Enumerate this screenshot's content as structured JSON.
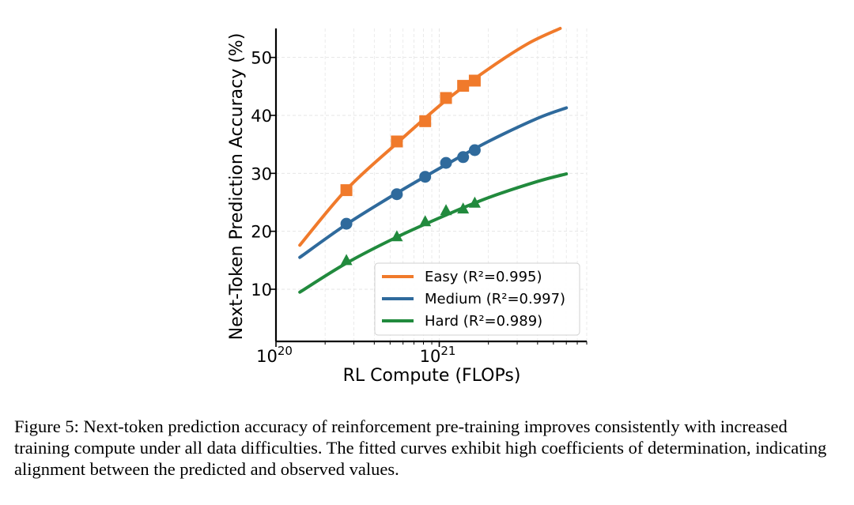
{
  "chart_data": {
    "type": "line",
    "xscale": "log",
    "xlabel": "RL Compute (FLOPs)",
    "ylabel": "Next-Token Prediction Accuracy (%)",
    "xlim": [
      1e+20,
      8e+21
    ],
    "ylim": [
      1,
      55
    ],
    "xticks": [
      {
        "value": 1e+20,
        "base": "10",
        "exp": "20"
      },
      {
        "value": 1e+21,
        "base": "10",
        "exp": "21"
      }
    ],
    "yticks": [
      10,
      20,
      30,
      40,
      50
    ],
    "grid": true,
    "legend_position": "lower-right",
    "series": [
      {
        "name": "Easy (R²=0.995)",
        "color": "#f07a2b",
        "marker": "square",
        "points": [
          {
            "x": 2.7e+20,
            "y": 27.1
          },
          {
            "x": 5.5e+20,
            "y": 35.5
          },
          {
            "x": 8.2e+20,
            "y": 39.0
          },
          {
            "x": 1.1e+21,
            "y": 43.0
          },
          {
            "x": 1.4e+21,
            "y": 45.1
          },
          {
            "x": 1.65e+21,
            "y": 46.0
          }
        ],
        "fit": [
          {
            "x": 1.4e+20,
            "y": 17.6
          },
          {
            "x": 2.7e+20,
            "y": 27.2
          },
          {
            "x": 5.5e+20,
            "y": 35.2
          },
          {
            "x": 1.1e+21,
            "y": 42.6
          },
          {
            "x": 2e+21,
            "y": 48.0
          },
          {
            "x": 3.5e+21,
            "y": 52.4
          },
          {
            "x": 5.5e+21,
            "y": 55.0
          }
        ]
      },
      {
        "name": "Medium (R²=0.997)",
        "color": "#2f6a9c",
        "marker": "circle",
        "points": [
          {
            "x": 2.7e+20,
            "y": 21.3
          },
          {
            "x": 5.5e+20,
            "y": 26.4
          },
          {
            "x": 8.2e+20,
            "y": 29.4
          },
          {
            "x": 1.1e+21,
            "y": 31.8
          },
          {
            "x": 1.4e+21,
            "y": 32.8
          },
          {
            "x": 1.65e+21,
            "y": 34.0
          }
        ],
        "fit": [
          {
            "x": 1.4e+20,
            "y": 15.5
          },
          {
            "x": 2.7e+20,
            "y": 21.2
          },
          {
            "x": 5.5e+20,
            "y": 26.6
          },
          {
            "x": 1.1e+21,
            "y": 31.5
          },
          {
            "x": 2e+21,
            "y": 35.5
          },
          {
            "x": 4e+21,
            "y": 39.5
          },
          {
            "x": 6e+21,
            "y": 41.3
          }
        ]
      },
      {
        "name": "Hard (R²=0.989)",
        "color": "#218a3d",
        "marker": "triangle",
        "points": [
          {
            "x": 2.7e+20,
            "y": 15.0
          },
          {
            "x": 5.5e+20,
            "y": 19.1
          },
          {
            "x": 8.2e+20,
            "y": 21.7
          },
          {
            "x": 1.1e+21,
            "y": 23.6
          },
          {
            "x": 1.4e+21,
            "y": 23.9
          },
          {
            "x": 1.65e+21,
            "y": 24.9
          }
        ],
        "fit": [
          {
            "x": 1.4e+20,
            "y": 9.5
          },
          {
            "x": 2.7e+20,
            "y": 14.5
          },
          {
            "x": 5.5e+20,
            "y": 19.0
          },
          {
            "x": 1.1e+21,
            "y": 22.8
          },
          {
            "x": 2e+21,
            "y": 25.8
          },
          {
            "x": 4e+21,
            "y": 28.6
          },
          {
            "x": 6e+21,
            "y": 29.9
          }
        ]
      }
    ]
  },
  "caption": "Figure 5: Next-token prediction accuracy of reinforcement pre-training improves consistently with increased training compute under all data difficulties. The fitted curves exhibit high coefficients of determination, indicating alignment between the predicted and observed values."
}
